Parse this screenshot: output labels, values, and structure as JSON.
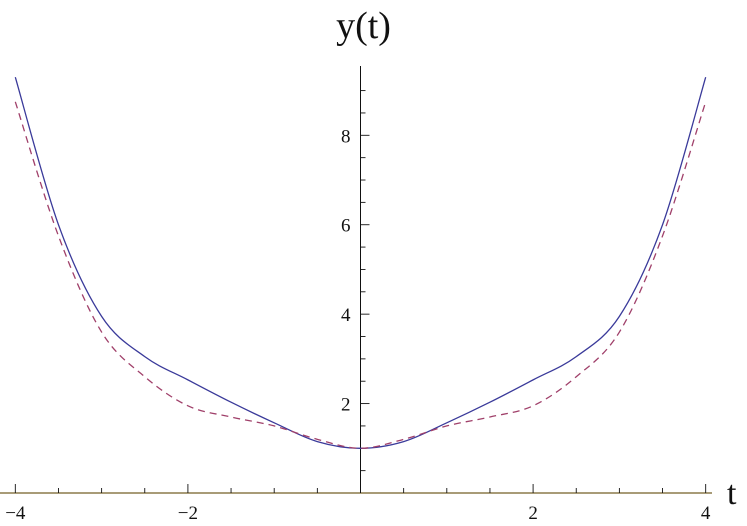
{
  "chart_data": {
    "type": "line",
    "title": "",
    "xlabel": "t",
    "ylabel": "y(t)",
    "xlim": [
      -4.05,
      4.05
    ],
    "ylim": [
      0,
      9.55
    ],
    "xticks": [
      {
        "value": -4,
        "label": "−4"
      },
      {
        "value": -2,
        "label": "−2"
      },
      {
        "value": 2,
        "label": "2"
      },
      {
        "value": 4,
        "label": "4"
      }
    ],
    "yticks": [
      {
        "value": 2,
        "label": "2"
      },
      {
        "value": 4,
        "label": "4"
      },
      {
        "value": 6,
        "label": "6"
      },
      {
        "value": 8,
        "label": "8"
      }
    ],
    "grid": false,
    "legend": "none",
    "series": [
      {
        "style": "solid",
        "color": "#3a3a9a",
        "x": [
          -4,
          -3.5,
          -3,
          -2.5,
          -2,
          -1.5,
          -1,
          -0.5,
          0,
          0.5,
          1,
          1.5,
          2,
          2.5,
          3,
          3.5,
          4
        ],
        "y": [
          9.3,
          6.0,
          3.95,
          3.05,
          2.53,
          2.03,
          1.57,
          1.15,
          1.0,
          1.15,
          1.57,
          2.03,
          2.53,
          3.05,
          3.95,
          6.0,
          9.3
        ]
      },
      {
        "style": "dashed",
        "color": "#a0406a",
        "x": [
          -4,
          -3.5,
          -3,
          -2.5,
          -2,
          -1.5,
          -1,
          -0.5,
          0,
          0.5,
          1,
          1.5,
          2,
          2.5,
          3,
          3.5,
          4
        ],
        "y": [
          8.75,
          5.75,
          3.6,
          2.6,
          1.95,
          1.7,
          1.5,
          1.2,
          1.0,
          1.2,
          1.5,
          1.7,
          1.95,
          2.6,
          3.6,
          5.75,
          8.75
        ]
      }
    ]
  },
  "colors": {
    "axis": "#111111",
    "x_axis_line": "#8b7a4a"
  }
}
